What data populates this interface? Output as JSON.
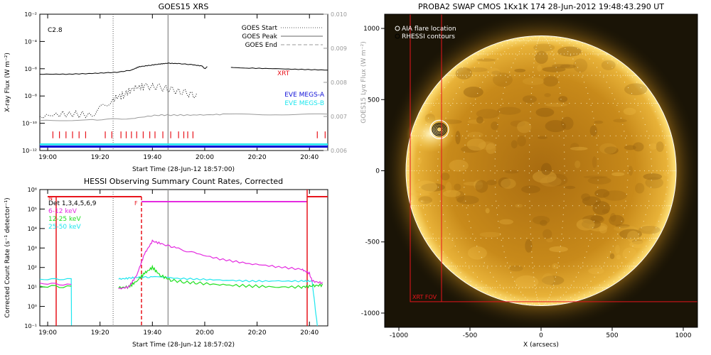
{
  "colors": {
    "red": "#e8141c",
    "magenta": "#e42be0",
    "green": "#1fe01f",
    "cyan": "#1ee6ee",
    "blue": "#1010d8",
    "grey": "#9a9a9a",
    "black": "#000000",
    "sun_core": "#c57f12",
    "sun_rim": "#ffd34a",
    "space": "#1a1406"
  },
  "goes_panel": {
    "chart_data": {
      "type": "line",
      "title": "GOES15 XRS",
      "ylabel": "X-ray Flux (W m⁻²)",
      "y2label": "GOES15 Lyα Flux (W m⁻²)",
      "xlabel": "Start Time (28-Jun-12 18:57:00)",
      "x_ticks": [
        "19:00",
        "19:20",
        "19:40",
        "20:00",
        "20:20",
        "20:40"
      ],
      "x_tick_minutes": [
        3,
        23,
        43,
        63,
        83,
        103
      ],
      "xlim_minutes": [
        0,
        110
      ],
      "ylim_log10": [
        -12,
        -2
      ],
      "y_ticks": [
        "10⁻¹²",
        "10⁻¹⁰",
        "10⁻⁸",
        "10⁻⁶",
        "10⁻⁴",
        "10⁻²"
      ],
      "y_tick_exps": [
        -12,
        -10,
        -8,
        -6,
        -4,
        -2
      ],
      "y2lim": [
        0.006,
        0.01
      ],
      "y2_ticks": [
        "0.006",
        "0.007",
        "0.008",
        "0.009",
        "0.010"
      ],
      "y2_tick_values": [
        0.006,
        0.007,
        0.008,
        0.009,
        0.01
      ],
      "flare_class": "C2.8",
      "goes_start_minute": 28,
      "goes_peak_minute": 49,
      "legend": [
        "GOES Start",
        "GOES Peak",
        "GOES End"
      ],
      "labels": {
        "xrt": "XRT",
        "eve_a": "EVE MEGS-A",
        "eve_b": "EVE MEGS-B"
      },
      "series": [
        {
          "name": "XRT",
          "x": [
            0,
            10,
            20,
            25,
            30,
            35,
            38,
            42,
            46,
            49,
            53,
            58,
            62,
            63,
            64,
            65,
            73,
            80,
            90,
            100,
            110
          ],
          "y_log10": [
            -6.4,
            -6.4,
            -6.35,
            -6.3,
            -6.25,
            -6.1,
            -5.85,
            -5.75,
            -5.65,
            -5.6,
            -5.62,
            -5.7,
            -5.8,
            -6.0,
            -5.85,
            null,
            -5.9,
            -5.95,
            -6.0,
            -6.05,
            -6.1
          ]
        },
        {
          "x": [
            0,
            10,
            20,
            28,
            32,
            36,
            40,
            45,
            50,
            55,
            60,
            65,
            70,
            80,
            90,
            100,
            110
          ],
          "y_log10": [
            -9.5,
            -9.3,
            -9.4,
            -8.2,
            -7.9,
            -7.4,
            -7.3,
            -7.35,
            -7.55,
            -7.75,
            -8.0,
            null,
            null,
            null,
            null,
            null,
            null
          ]
        },
        {
          "x": [
            0,
            20,
            35,
            45,
            50,
            60,
            70,
            90,
            110
          ],
          "y_log10": [
            -9.8,
            -9.75,
            -9.65,
            -9.4,
            -9.4,
            -9.4,
            -9.35,
            -9.35,
            -9.35
          ]
        }
      ],
      "hessi_ticks_minutes": [
        5,
        7.5,
        10,
        12.5,
        15,
        17.5,
        25,
        27.5,
        31,
        33,
        35,
        37,
        39.5,
        42,
        44,
        47,
        50,
        53,
        55,
        56.5,
        58.5,
        106,
        109
      ]
    }
  },
  "hessi_panel": {
    "chart_data": {
      "type": "line",
      "title": "HESSI Observing Summary Count Rates, Corrected",
      "ylabel": "Corrected Count Rate (s⁻¹ detector⁻¹)",
      "xlabel": "Start Time (28-Jun-12 18:57:02)",
      "x_ticks": [
        "19:00",
        "19:20",
        "19:40",
        "20:00",
        "20:20",
        "20:40"
      ],
      "x_tick_minutes": [
        3,
        23,
        43,
        63,
        83,
        103
      ],
      "xlim_minutes": [
        0,
        110
      ],
      "ylim_log10": [
        -1,
        6
      ],
      "y_ticks": [
        "10⁻¹",
        "10⁰",
        "10¹",
        "10²",
        "10³",
        "10⁴",
        "10⁵",
        "10⁶"
      ],
      "y_tick_exps": [
        -1,
        0,
        1,
        2,
        3,
        4,
        5,
        6
      ],
      "legend_title": "Det 1,3,4,5,6,9",
      "flags": {
        "n": "N",
        "f": "F"
      },
      "series": [
        {
          "name": "6-12 keV",
          "x": [
            0,
            12,
            12.1,
            30,
            30.1,
            34,
            37,
            40,
            43,
            47,
            52,
            60,
            70,
            80,
            90,
            100,
            103,
            104,
            108
          ],
          "y_log10": [
            1.2,
            1.1,
            null,
            null,
            0.9,
            1.0,
            1.6,
            2.7,
            3.35,
            3.2,
            3.0,
            2.7,
            2.4,
            2.2,
            2.05,
            1.9,
            1.7,
            1.3,
            1.2
          ]
        },
        {
          "name": "12-25 keV",
          "x": [
            0,
            12,
            12.1,
            30,
            30.1,
            34,
            37,
            40,
            43,
            46,
            50,
            55,
            60,
            70,
            80,
            90,
            100,
            104,
            108
          ],
          "y_log10": [
            1.05,
            1.0,
            null,
            null,
            0.95,
            1.0,
            1.3,
            1.7,
            2.0,
            1.6,
            1.35,
            1.25,
            1.2,
            1.1,
            1.05,
            1.0,
            1.0,
            1.05,
            1.1
          ]
        },
        {
          "name": "25-50 keV",
          "x": [
            0,
            12,
            12.1,
            30,
            30.1,
            34,
            38,
            43,
            50,
            60,
            70,
            80,
            90,
            100,
            104,
            106
          ],
          "y_log10": [
            1.4,
            1.4,
            -1,
            null,
            1.4,
            1.45,
            1.5,
            1.5,
            1.45,
            1.4,
            1.35,
            1.3,
            1.3,
            1.3,
            1.3,
            -1
          ]
        }
      ],
      "goes_start_minute": 28,
      "goes_peak_minute": 49
    }
  },
  "swap_panel": {
    "chart_data": {
      "type": "image",
      "title": "PROBA2 SWAP CMOS 1Kx1K 174 28-Jun-2012 19:48:43.290 UT",
      "xlabel": "X (arcsecs)",
      "x_ticks": [
        "-1000",
        "-500",
        "0",
        "500",
        "1000"
      ],
      "x_tick_values": [
        -1000,
        -500,
        0,
        500,
        1000
      ],
      "y_ticks": [
        "-1000",
        "-500",
        "0",
        "500",
        "1000"
      ],
      "y_tick_values": [
        -1000,
        -500,
        0,
        500,
        1000
      ],
      "xlim": [
        -1100,
        1100
      ],
      "ylim": [
        -1100,
        1100
      ],
      "solar_radius_arcsec": 950,
      "legend": [
        "AIA flare location",
        "RHESSI contours"
      ],
      "flare_location_arcsec": [
        -715,
        290
      ],
      "xrt_fov_label": "XRT FOV",
      "xrt_fov_x": [
        -920,
        1100
      ],
      "xrt_fov_y": [
        -920,
        1100
      ],
      "inner_line_x": -700
    }
  }
}
